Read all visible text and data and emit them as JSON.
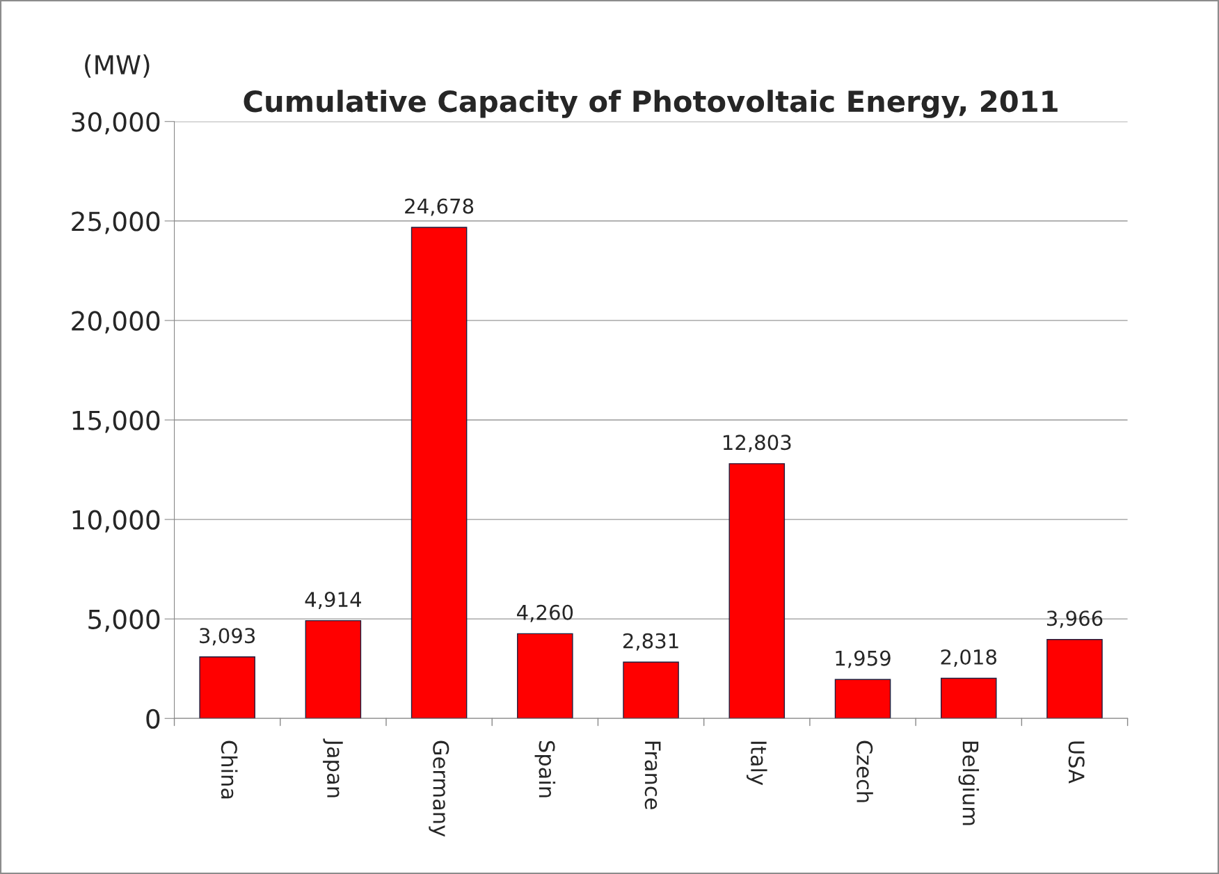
{
  "chart_data": {
    "type": "bar",
    "title": "Cumulative Capacity of Photovoltaic Energy, 2011",
    "ylabel": "(MW)",
    "categories": [
      "China",
      "Japan",
      "Germany",
      "Spain",
      "France",
      "Italy",
      "Czech",
      "Belgium",
      "USA"
    ],
    "values": [
      3093,
      4914,
      24678,
      4260,
      2831,
      12803,
      1959,
      2018,
      3966
    ],
    "value_labels": [
      "3,093",
      "4,914",
      "24,678",
      "4,260",
      "2,831",
      "12,803",
      "1,959",
      "2,018",
      "3,966"
    ],
    "color": "#ff0000",
    "ylim": [
      0,
      30000
    ],
    "yticks": [
      0,
      {
        "value": 5000,
        "label": "5,000"
      },
      {
        "value": 10000,
        "label": "10,000"
      },
      {
        "value": 15000,
        "label": "15,000"
      },
      {
        "value": 20000,
        "label": "20,000"
      },
      {
        "value": 25000,
        "label": "25,000"
      },
      {
        "value": 30000,
        "label": "30,000"
      }
    ],
    "grid": "y",
    "legend": false
  }
}
